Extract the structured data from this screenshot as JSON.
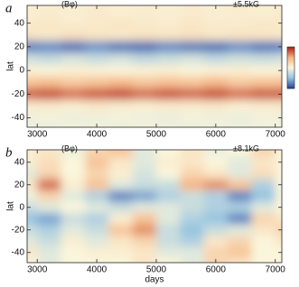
{
  "chart_data": [
    {
      "type": "heatmap",
      "panel_label": "a",
      "title": "(Bφ)",
      "scale_label": "±5.5kG",
      "ylabel": "lat",
      "colorbar": true,
      "x": [
        2800,
        3200,
        3600,
        4000,
        4400,
        4800,
        5200,
        5600,
        6000,
        6400,
        6800,
        7200
      ],
      "y": [
        50,
        40,
        30,
        20,
        10,
        0,
        -10,
        -20,
        -30,
        -40,
        -50
      ],
      "zlim": [
        -5.5,
        5.5
      ],
      "z": [
        [
          0.3,
          0.4,
          0.3,
          0.5,
          0.3,
          0.4,
          0.3,
          0.5,
          0.3,
          0.4,
          0.3,
          0.4
        ],
        [
          0.5,
          0.6,
          0.4,
          0.5,
          0.7,
          0.5,
          0.4,
          0.6,
          0.5,
          0.4,
          0.6,
          0.5
        ],
        [
          0.8,
          0.6,
          0.9,
          0.7,
          0.6,
          0.8,
          0.7,
          0.9,
          0.6,
          0.8,
          0.7,
          0.6
        ],
        [
          -4.2,
          -4,
          -4.5,
          -3.8,
          -4.4,
          -4.6,
          -4,
          -4.3,
          -4.5,
          -3.9,
          -4.4,
          -4.2
        ],
        [
          -1.2,
          -1.5,
          -1,
          -1.4,
          -1.1,
          -1.6,
          -1.3,
          -1,
          -1.5,
          -1.2,
          -1.4,
          -1.1
        ],
        [
          0.2,
          0.1,
          0.3,
          0.2,
          0.1,
          0.2,
          0.3,
          0.1,
          0.2,
          0.3,
          0.1,
          0.2
        ],
        [
          2,
          2.3,
          1.8,
          2.1,
          2.4,
          1.9,
          2.2,
          2,
          2.5,
          1.8,
          2.1,
          2.2
        ],
        [
          4.3,
          4.6,
          4,
          4.4,
          4.7,
          4.1,
          4.5,
          4.2,
          4.6,
          4,
          4.4,
          4.3
        ],
        [
          0.4,
          0.5,
          0.3,
          0.6,
          0.4,
          0.3,
          0.5,
          0.4,
          0.6,
          0.3,
          0.4,
          0.5
        ],
        [
          -0.3,
          -0.2,
          -0.4,
          -0.3,
          -0.2,
          -0.3,
          -0.4,
          -0.2,
          -0.3,
          -0.4,
          -0.2,
          -0.3
        ],
        [
          -0.3,
          -0.4,
          -0.2,
          -0.3,
          -0.4,
          -0.2,
          -0.3,
          -0.4,
          -0.2,
          -0.3,
          -0.3,
          -0.2
        ]
      ],
      "xlim": [
        2830,
        7110
      ],
      "ylim": [
        -48,
        55
      ],
      "xticks": [
        3000,
        4000,
        5000,
        6000,
        7000
      ],
      "yticks": [
        -40,
        -20,
        0,
        20,
        40
      ]
    },
    {
      "type": "heatmap",
      "panel_label": "b",
      "title": "(Bφ)",
      "scale_label": "±8.1kG",
      "ylabel": "lat",
      "xlabel": "days",
      "colorbar": false,
      "x": [
        2800,
        3200,
        3600,
        4000,
        4400,
        4800,
        5200,
        5600,
        6000,
        6400,
        6800,
        7200
      ],
      "y": [
        50,
        40,
        30,
        20,
        10,
        0,
        -10,
        -20,
        -30,
        -40,
        -50
      ],
      "zlim": [
        -8.1,
        8.1
      ],
      "z": [
        [
          0.5,
          1,
          -0.5,
          2,
          3,
          -1,
          0,
          1,
          -0.5,
          0,
          2,
          0
        ],
        [
          0.5,
          1.5,
          0,
          3,
          1,
          -1,
          0.5,
          1,
          0,
          -1,
          1,
          0
        ],
        [
          -1,
          2,
          0,
          2,
          0.5,
          -1.5,
          0,
          2,
          1,
          -1,
          1.5,
          0
        ],
        [
          1,
          6,
          0.5,
          3,
          -1,
          -2,
          -2,
          4,
          5,
          3,
          -3,
          0
        ],
        [
          -0.5,
          2,
          -1,
          -3,
          -6,
          -5,
          -3,
          -2,
          -3,
          -6,
          -4,
          0
        ],
        [
          -2,
          -1,
          0,
          -1,
          -2,
          -1,
          -1,
          -2,
          -3,
          -3,
          -1,
          0
        ],
        [
          -4,
          -5,
          -2,
          -3,
          0.5,
          3,
          -1,
          -3,
          -4,
          -6,
          2,
          1
        ],
        [
          -2,
          -3,
          -1,
          -2,
          3,
          5,
          -2,
          -4,
          -2,
          -1,
          1,
          2
        ],
        [
          -1,
          -2,
          0.5,
          -1,
          1,
          2,
          -2,
          -3,
          1,
          2,
          0,
          1
        ],
        [
          1,
          -1,
          0,
          0.5,
          0.5,
          1,
          -1,
          -1,
          2,
          3,
          0,
          0
        ],
        [
          0,
          -1,
          0,
          0,
          0,
          1,
          0,
          -1,
          2,
          1,
          0,
          0
        ]
      ],
      "xlim": [
        2830,
        7110
      ],
      "ylim": [
        -49,
        51
      ],
      "xticks": [
        3000,
        4000,
        5000,
        6000,
        7000
      ],
      "yticks": [
        -40,
        -20,
        0,
        20,
        40
      ]
    }
  ]
}
